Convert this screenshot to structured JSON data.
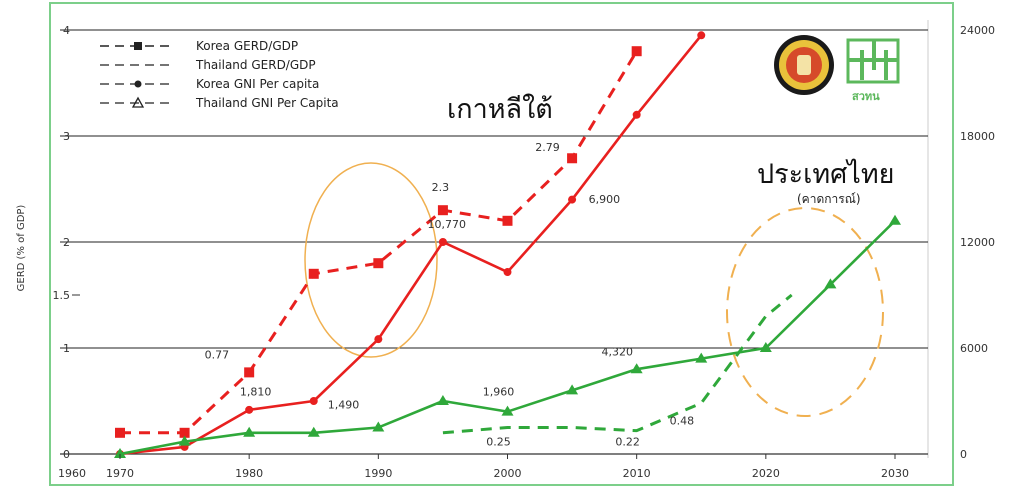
{
  "chart_data": {
    "type": "line",
    "ylabel": "GERD (% of GDP)",
    "y_left_ticks": [
      "0",
      "1",
      "1.5",
      "2",
      "3",
      "4"
    ],
    "y_right_ticks": [
      "0",
      "6000",
      "12000",
      "18000",
      "24000"
    ],
    "x_ticks": [
      "1960",
      "1970",
      "1980",
      "1990",
      "2000",
      "2010",
      "2020",
      "2030"
    ],
    "ylim_left": [
      0,
      4
    ],
    "ylim_right": [
      0,
      24000
    ],
    "xlim": [
      1960,
      2035
    ],
    "grid": "horizontal",
    "legend_position": "top-left",
    "series": [
      {
        "name": "Korea GERD/GDP",
        "axis": "left",
        "color": "#e8201f",
        "dash": true,
        "marker": "square",
        "x": [
          1970,
          1975,
          1980,
          1985,
          1990,
          1995,
          2000,
          2005,
          2010
        ],
        "y": [
          0.2,
          0.2,
          0.77,
          1.7,
          1.8,
          2.3,
          2.2,
          2.79,
          3.8
        ]
      },
      {
        "name": "Thailand GERD/GDP",
        "axis": "left",
        "color": "#2fa83a",
        "dash": true,
        "marker": "none",
        "x": [
          1995,
          2000,
          2005,
          2010,
          2015,
          2020,
          2022
        ],
        "y": [
          0.2,
          0.25,
          0.25,
          0.22,
          0.48,
          1.3,
          1.5
        ]
      },
      {
        "name": "Korea GNI Per capita",
        "axis": "right",
        "color": "#e8201f",
        "dash": false,
        "marker": "circle",
        "x": [
          1970,
          1975,
          1980,
          1985,
          1990,
          1995,
          2000,
          2005,
          2010,
          2015
        ],
        "y": [
          0,
          400,
          2500,
          3000,
          6500,
          12000,
          10300,
          14400,
          19200,
          23700
        ]
      },
      {
        "name": "Thailand GNI Per Capita",
        "axis": "right",
        "color": "#2fa83a",
        "dash": false,
        "marker": "triangle",
        "x": [
          1970,
          1975,
          1980,
          1985,
          1990,
          1995,
          2000,
          2005,
          2010,
          2015,
          2020,
          2025,
          2030
        ],
        "y": [
          0,
          700,
          1200,
          1200,
          1500,
          3000,
          2400,
          3600,
          4800,
          5400,
          6000,
          9600,
          13200
        ]
      }
    ],
    "annotations": [
      {
        "text": "0.77",
        "x": 1977.5,
        "y": 0.9
      },
      {
        "text": "1,810",
        "x": 1980.5,
        "y": 0.55
      },
      {
        "text": "1,490",
        "x": 1987.3,
        "y": 0.43
      },
      {
        "text": "2.3",
        "x": 1994.8,
        "y": 2.48
      },
      {
        "text": "10,770",
        "x": 1995.3,
        "y": 2.13
      },
      {
        "text": "2.79",
        "x": 2003.1,
        "y": 2.86
      },
      {
        "text": "6,900",
        "x": 2007.5,
        "y": 2.37
      },
      {
        "text": "1,960",
        "x": 1999.3,
        "y": 0.55
      },
      {
        "text": "4,320",
        "x": 2008.5,
        "y": 0.93
      },
      {
        "text": "0.25",
        "x": 1999.3,
        "y": 0.08
      },
      {
        "text": "0.22",
        "x": 2009.3,
        "y": 0.08
      },
      {
        "text": "0.48",
        "x": 2013.5,
        "y": 0.28
      }
    ],
    "callouts": {
      "korea": "เกาหลีใต้",
      "thailand": "ประเทศไทย",
      "thailand_note": "(คาดการณ์)"
    }
  },
  "logos": {
    "tsri_text": "สวทน"
  },
  "colors": {
    "korea": "#e8201f",
    "thailand": "#2fa83a",
    "ellipse": "#f0b050",
    "frame": "#7ccf8a"
  }
}
